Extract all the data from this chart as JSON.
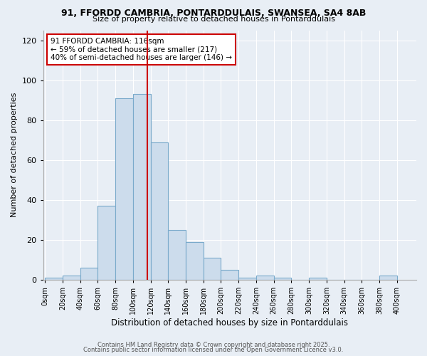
{
  "title": "91, FFORDD CAMBRIA, PONTARDDULAIS, SWANSEA, SA4 8AB",
  "subtitle": "Size of property relative to detached houses in Pontarddulais",
  "xlabel": "Distribution of detached houses by size in Pontarddulais",
  "ylabel": "Number of detached properties",
  "bin_edges": [
    0,
    20,
    40,
    60,
    80,
    100,
    120,
    140,
    160,
    180,
    200,
    220,
    240,
    260,
    280,
    300,
    320,
    340,
    360,
    380,
    400
  ],
  "bar_heights": [
    1,
    2,
    6,
    37,
    91,
    93,
    69,
    25,
    19,
    11,
    5,
    1,
    2,
    1,
    0,
    1,
    0,
    0,
    0,
    2
  ],
  "bar_color": "#ccdcec",
  "bar_edge_color": "#7aaacb",
  "property_size": 116,
  "annotation_text_line1": "91 FFORDD CAMBRIA: 116sqm",
  "annotation_text_line2": "← 59% of detached houses are smaller (217)",
  "annotation_text_line3": "40% of semi-detached houses are larger (146) →",
  "annotation_box_color": "#ffffff",
  "annotation_box_edge_color": "#cc0000",
  "vline_color": "#cc0000",
  "ylim": [
    0,
    125
  ],
  "xlim": [
    -2,
    422
  ],
  "yticks": [
    0,
    20,
    40,
    60,
    80,
    100,
    120
  ],
  "tick_labels": [
    "0sqm",
    "20sqm",
    "40sqm",
    "60sqm",
    "80sqm",
    "100sqm",
    "120sqm",
    "140sqm",
    "160sqm",
    "180sqm",
    "200sqm",
    "220sqm",
    "240sqm",
    "260sqm",
    "280sqm",
    "300sqm",
    "320sqm",
    "340sqm",
    "360sqm",
    "380sqm",
    "400sqm"
  ],
  "footer_line1": "Contains HM Land Registry data © Crown copyright and database right 2025.",
  "footer_line2": "Contains public sector information licensed under the Open Government Licence v3.0.",
  "background_color": "#e8eef5",
  "plot_background_color": "#e8eef5",
  "grid_color": "#ffffff"
}
